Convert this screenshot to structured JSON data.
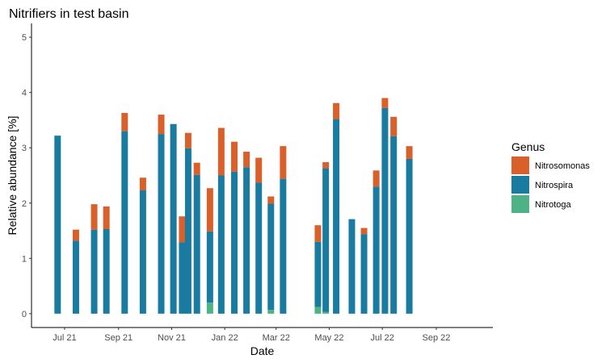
{
  "chart_data": {
    "type": "bar",
    "stacked": true,
    "title": "Nitrifiers in test basin",
    "xlabel": "Date",
    "ylabel": "Relative abundance [%]",
    "ylim": [
      -0.25,
      5.25
    ],
    "yticks": [
      0,
      1,
      2,
      3,
      4,
      5
    ],
    "xlim": [
      "2021-05-24",
      "2022-11-05"
    ],
    "xticks": [
      {
        "date": "2021-07-01",
        "label": "Jul 21"
      },
      {
        "date": "2021-09-01",
        "label": "Sep 21"
      },
      {
        "date": "2021-11-01",
        "label": "Nov 21"
      },
      {
        "date": "2022-01-01",
        "label": "Jan 22"
      },
      {
        "date": "2022-03-01",
        "label": "Mar 22"
      },
      {
        "date": "2022-05-01",
        "label": "May 22"
      },
      {
        "date": "2022-07-01",
        "label": "Jul 22"
      },
      {
        "date": "2022-09-01",
        "label": "Sep 22"
      }
    ],
    "grid": false,
    "legend": {
      "title": "Genus",
      "position": "right"
    },
    "dates": [
      "2021-06-23",
      "2021-07-14",
      "2021-08-04",
      "2021-08-18",
      "2021-09-08",
      "2021-09-29",
      "2021-10-20",
      "2021-11-03",
      "2021-11-13",
      "2021-11-20",
      "2021-11-30",
      "2021-12-15",
      "2021-12-28",
      "2022-01-12",
      "2022-01-26",
      "2022-02-09",
      "2022-02-23",
      "2022-03-09",
      "2022-04-18",
      "2022-04-27",
      "2022-05-09",
      "2022-05-27",
      "2022-06-10",
      "2022-06-24",
      "2022-07-04",
      "2022-07-14",
      "2022-08-01",
      "2022-08-12",
      "2022-08-22",
      "2022-08-30"
    ],
    "series": [
      {
        "name": "Nitrotoga",
        "color": "#4db386",
        "values": [
          0,
          0,
          0,
          0,
          0,
          0,
          0,
          0,
          0,
          0,
          0,
          0.2,
          0,
          0,
          0,
          0,
          0.07,
          0,
          0.12,
          0.03,
          0,
          0,
          0,
          0,
          0,
          0,
          0,
          0,
          0,
          0
        ]
      },
      {
        "name": "Nitrospira",
        "color": "#1a7ba0",
        "values": [
          3.22,
          1.32,
          1.52,
          1.53,
          3.3,
          2.23,
          3.25,
          3.43,
          1.29,
          2.99,
          2.51,
          1.29,
          2.5,
          2.57,
          2.65,
          2.37,
          1.92,
          2.44,
          1.18,
          2.6,
          3.52,
          1.71,
          1.44,
          2.3,
          3.72,
          3.21,
          2.8,
          0,
          0,
          0
        ]
      },
      {
        "name": "Nitrosomonas",
        "color": "#d95f2b",
        "values": [
          0,
          0.2,
          0.46,
          0.41,
          0.33,
          0.23,
          0.35,
          0,
          0.47,
          0.28,
          0.22,
          0.78,
          0.86,
          0.54,
          0.28,
          0.45,
          0.13,
          0.59,
          0.3,
          0.11,
          0.29,
          0,
          0.11,
          0.29,
          0.18,
          0.35,
          0.23,
          0,
          0,
          0
        ]
      }
    ]
  }
}
